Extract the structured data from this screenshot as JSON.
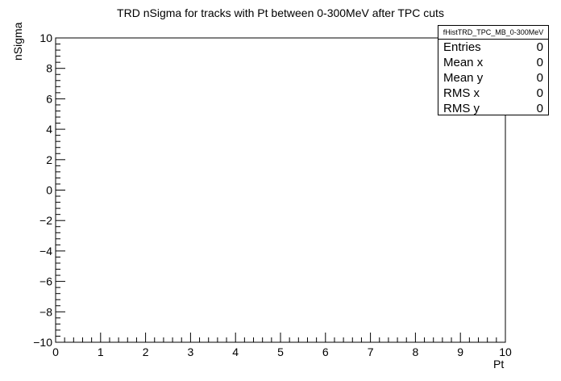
{
  "chart_data": {
    "type": "scatter",
    "title": "TRD nSigma for tracks with Pt between 0-300MeV after TPC cuts",
    "xlabel": "Pt",
    "ylabel": "nSigma",
    "xlim": [
      0,
      10
    ],
    "ylim": [
      -10,
      10
    ],
    "x_ticks": [
      0,
      1,
      2,
      3,
      4,
      5,
      6,
      7,
      8,
      9,
      10
    ],
    "y_ticks": [
      -10,
      -8,
      -6,
      -4,
      -2,
      0,
      2,
      4,
      6,
      8,
      10
    ],
    "grid": false,
    "series": [],
    "stats_box": {
      "name": "fHistTRD_TPC_MB_0-300MeV",
      "entries": [
        {
          "label": "Entries",
          "value": "0"
        },
        {
          "label": "Mean x",
          "value": "0"
        },
        {
          "label": "Mean y",
          "value": "0"
        },
        {
          "label": "RMS x",
          "value": "0"
        },
        {
          "label": "RMS y",
          "value": "0"
        }
      ]
    }
  }
}
